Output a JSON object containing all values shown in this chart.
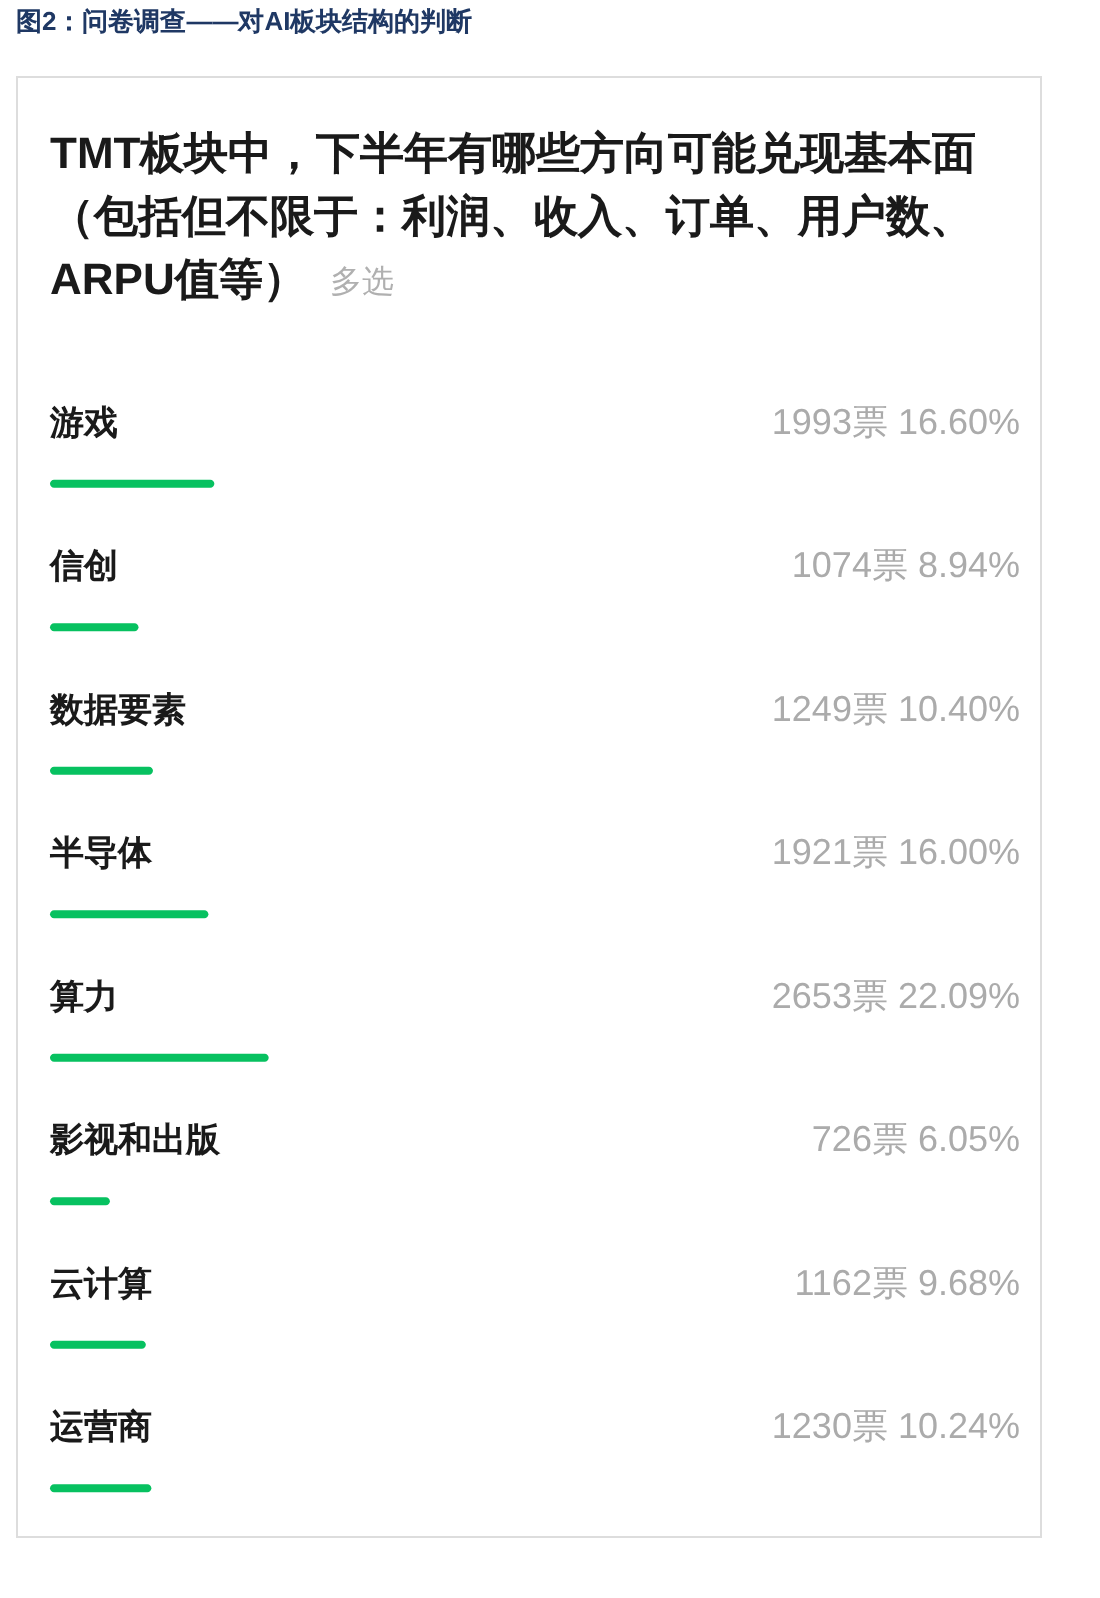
{
  "chart_data": {
    "type": "bar",
    "orientation": "horizontal",
    "title": "图2：问卷调查——对AI板块结构的判断",
    "subtitle": "TMT板块中，下半年有哪些方向可能兑现基本面（包括但不限于：利润、收入、订单、用户数、ARPU值等）",
    "annotations": [
      "多选"
    ],
    "categories": [
      "游戏",
      "信创",
      "数据要素",
      "半导体",
      "算力",
      "影视和出版",
      "云计算",
      "运营商"
    ],
    "values": [
      16.6,
      8.94,
      10.4,
      16.0,
      22.09,
      6.05,
      9.68,
      10.24
    ],
    "value_labels": [
      "1993票 16.60%",
      "1074票 8.94%",
      "1249票 10.40%",
      "1921票 16.00%",
      "2653票 22.09%",
      "726票 6.05%",
      "1162票 9.68%",
      "1230票 10.24%"
    ],
    "color": "#07c160",
    "xlim": [
      0,
      100
    ],
    "tick_labels": "y"
  }
}
